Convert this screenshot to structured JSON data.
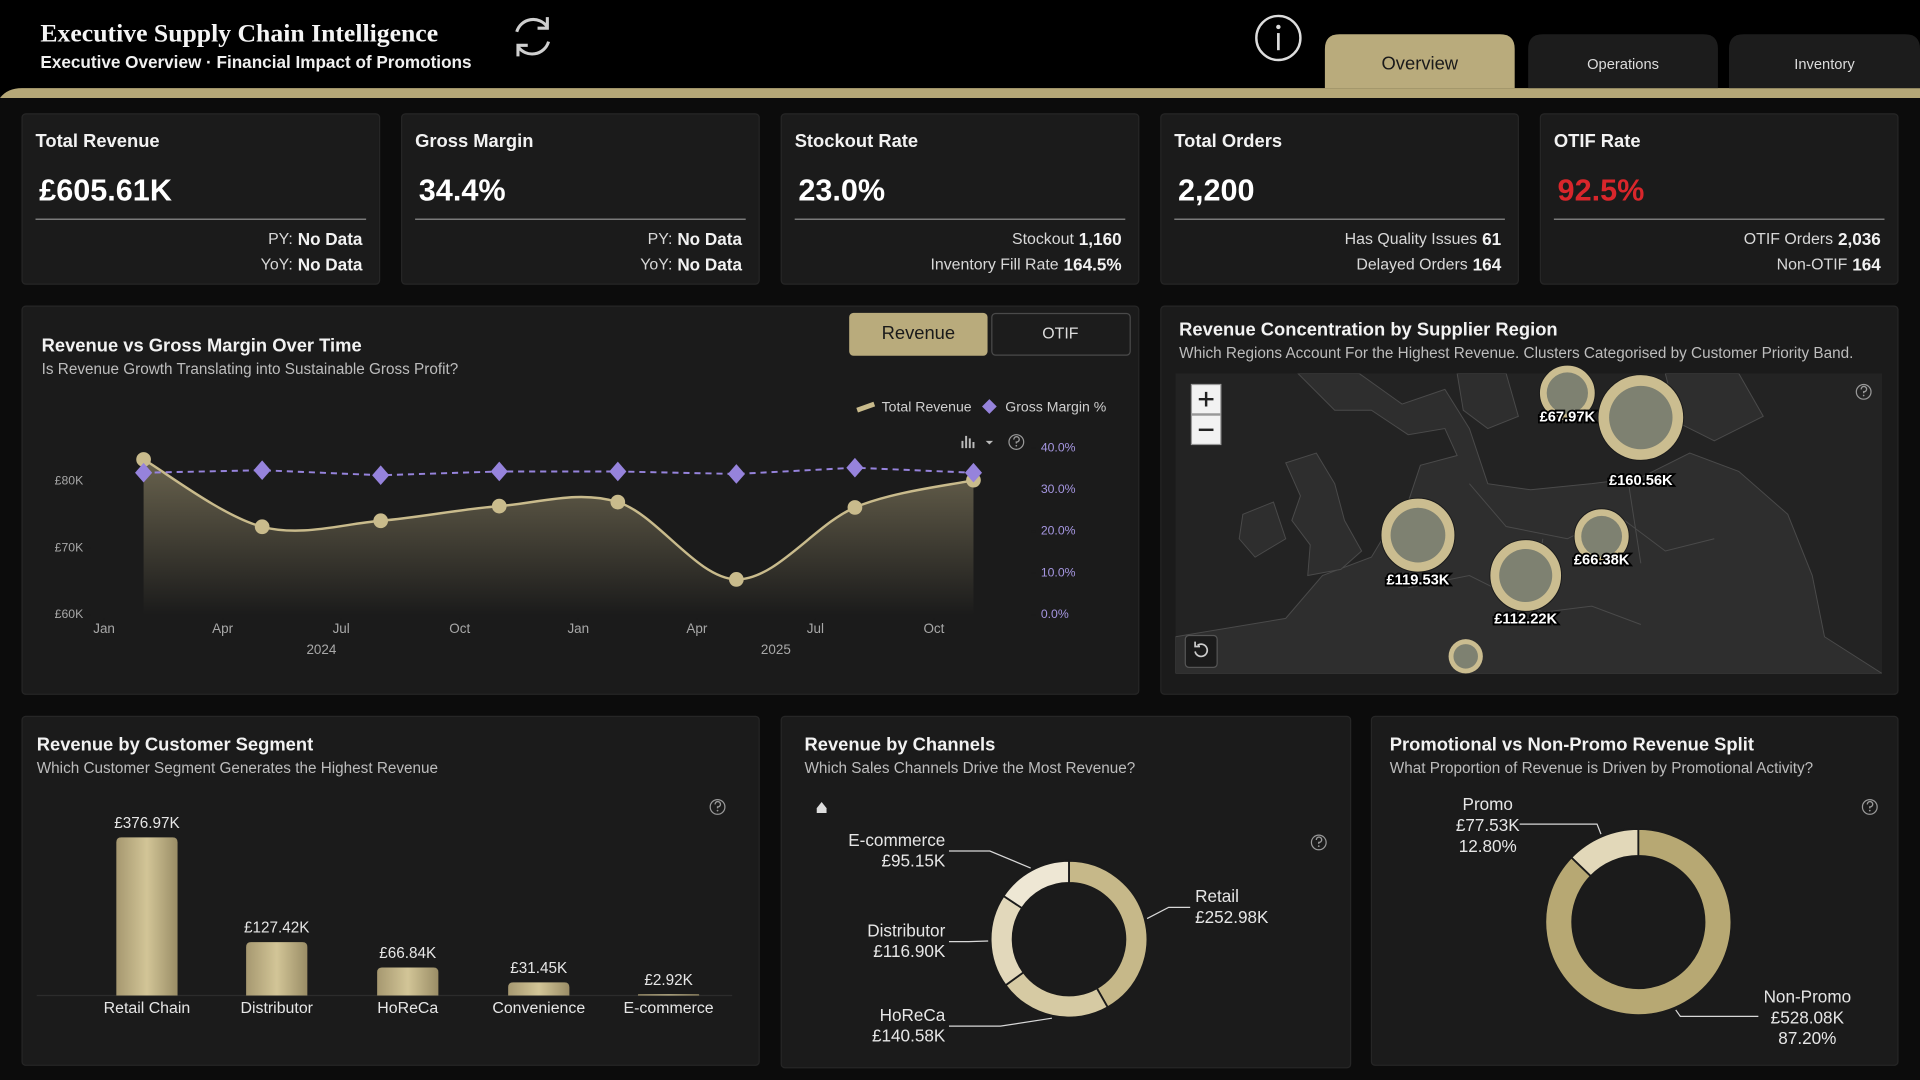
{
  "header": {
    "title": "Executive Supply Chain Intelligence",
    "subtitle": "Executive Overview · Financial Impact of Promotions",
    "tabs": [
      "Overview",
      "Operations",
      "Inventory"
    ]
  },
  "kpis": [
    {
      "title": "Total Revenue",
      "value": "£605.61K",
      "value_color": "#ffffff",
      "details": [
        [
          "PY:",
          "No Data"
        ],
        [
          "YoY:",
          "No Data"
        ]
      ]
    },
    {
      "title": "Gross Margin",
      "value": "34.4%",
      "value_color": "#ffffff",
      "details": [
        [
          "PY:",
          "No Data"
        ],
        [
          "YoY:",
          "No Data"
        ]
      ]
    },
    {
      "title": "Stockout Rate",
      "value": "23.0%",
      "value_color": "#ffffff",
      "details": [
        [
          "Stockout",
          "1,160"
        ],
        [
          "Inventory Fill Rate",
          "164.5%"
        ]
      ]
    },
    {
      "title": "Total Orders",
      "value": "2,200",
      "value_color": "#ffffff",
      "details": [
        [
          "Has Quality Issues",
          "61"
        ],
        [
          "Delayed Orders",
          "164"
        ]
      ]
    },
    {
      "title": "OTIF Rate",
      "value": "92.5%",
      "value_color": "#d9262b",
      "details": [
        [
          "OTIF Orders",
          "2,036"
        ],
        [
          "Non-OTIF",
          "164"
        ]
      ]
    }
  ],
  "chart_data": [
    {
      "type": "combo",
      "title": "Revenue vs Gross Margin Over Time",
      "subtitle": "Is Revenue Growth Translating into Sustainable Gross Profit?",
      "toggles": [
        "Revenue",
        "OTIF"
      ],
      "x": [
        "2024-02",
        "2024-05",
        "2024-08",
        "2024-11",
        "2025-02",
        "2025-05",
        "2025-08",
        "2025-11"
      ],
      "xlim": [
        "2024-01",
        "2025-11"
      ],
      "xticks": [
        {
          "value": "2024-01",
          "label": "Jan"
        },
        {
          "value": "2024-04",
          "label": "Apr"
        },
        {
          "value": "2024-07",
          "label": "Jul"
        },
        {
          "value": "2024-10",
          "label": "Oct"
        },
        {
          "value": "2025-01",
          "label": "Jan"
        },
        {
          "value": "2025-04",
          "label": "Apr"
        },
        {
          "value": "2025-07",
          "label": "Jul"
        },
        {
          "value": "2025-10",
          "label": "Oct"
        }
      ],
      "xgroups": [
        "2024",
        "2025"
      ],
      "series": [
        {
          "name": "Total Revenue",
          "color": "#c9bb8c",
          "values": [
            83300,
            73200,
            74100,
            76300,
            76900,
            65300,
            76100,
            80200
          ]
        },
        {
          "name": "Gross Margin %",
          "color": "#9683dc",
          "axis": "y2",
          "values": [
            34.1,
            34.7,
            33.5,
            34.4,
            34.4,
            33.8,
            35.3,
            34.1
          ]
        }
      ],
      "ylim": [
        60000,
        85000
      ],
      "yticks": [
        {
          "value": 60000,
          "label": "£60K"
        },
        {
          "value": 70000,
          "label": "£70K"
        },
        {
          "value": 80000,
          "label": "£80K"
        }
      ],
      "y2lim": [
        0,
        40
      ],
      "y2ticks": [
        {
          "value": 0,
          "label": "0.0%"
        },
        {
          "value": 10,
          "label": "10.0%"
        },
        {
          "value": 20,
          "label": "20.0%"
        },
        {
          "value": 30,
          "label": "30.0%"
        },
        {
          "value": 40,
          "label": "40.0%"
        }
      ]
    },
    {
      "type": "bubble-map",
      "title": "Revenue Concentration by Supplier Region",
      "subtitle": "Which Regions Account For the Highest Revenue. Clusters Categorised by Customer Priority Band.",
      "values": [
        67970,
        160560,
        119530,
        66380,
        112220
      ],
      "value_labels": [
        "£67.97K",
        "£160.56K",
        "£119.53K",
        "£66.38K",
        "£112.22K"
      ],
      "color": "#cbbd90"
    },
    {
      "type": "bar",
      "title": "Revenue by Customer Segment",
      "subtitle": "Which Customer Segment Generates the Highest Revenue",
      "categories": [
        "Retail Chain",
        "Distributor",
        "HoReCa",
        "Convenience",
        "E-commerce"
      ],
      "values": [
        376970,
        127420,
        66840,
        31450,
        2920
      ],
      "value_labels": [
        "£376.97K",
        "£127.42K",
        "£66.84K",
        "£31.45K",
        "£2.92K"
      ],
      "color": "#c2b485",
      "ylim": [
        0,
        400000
      ]
    },
    {
      "type": "donut",
      "title": "Revenue by Channels",
      "subtitle": "Which Sales Channels Drive the Most Revenue?",
      "categories": [
        "Retail",
        "HoReCa",
        "Distributor",
        "E-commerce"
      ],
      "values": [
        252980,
        140580,
        116900,
        95150
      ],
      "value_labels": [
        "£252.98K",
        "£140.58K",
        "£116.90K",
        "£95.15K"
      ],
      "colors": [
        "#c6b889",
        "#d6caa3",
        "#e2d8bb",
        "#eee7d4"
      ]
    },
    {
      "type": "donut",
      "title": "Promotional vs Non-Promo Revenue Split",
      "subtitle": "What Proportion of Revenue is Driven by Promotional Activity?",
      "categories": [
        "Promo",
        "Non-Promo"
      ],
      "values": [
        77530,
        528080
      ],
      "value_labels": [
        "£77.53K",
        "£528.08K"
      ],
      "percents": [
        12.8,
        87.2
      ],
      "percent_labels": [
        "12.80%",
        "87.20%"
      ],
      "colors": [
        "#e2d8b9",
        "#b7a873"
      ]
    }
  ]
}
